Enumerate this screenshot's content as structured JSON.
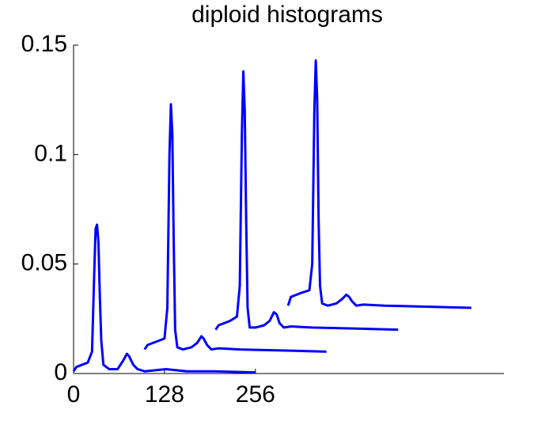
{
  "chart_data": {
    "type": "line",
    "title": "diploid histograms",
    "xlim": [
      0,
      606
    ],
    "ylim": [
      0,
      0.15
    ],
    "xticks": [
      0,
      128,
      256
    ],
    "yticks": [
      0,
      0.05,
      0.1,
      0.15
    ],
    "series": [
      {
        "color": "#0000ff",
        "x": [
          0,
          4,
          12,
          20,
          26,
          29,
          31,
          33,
          35,
          37,
          39,
          42,
          50,
          62,
          70,
          75,
          78,
          84,
          90,
          100,
          130,
          160,
          200,
          256
        ],
        "values": [
          0.001,
          0.003,
          0.004,
          0.005,
          0.01,
          0.045,
          0.066,
          0.068,
          0.06,
          0.035,
          0.015,
          0.004,
          0.002,
          0.002,
          0.006,
          0.009,
          0.008,
          0.004,
          0.002,
          0.001,
          0.002,
          0.001,
          0.001,
          0.0005
        ]
      },
      {
        "color": "#0000ff",
        "x": [
          100,
          104,
          112,
          120,
          128,
          132,
          135,
          137,
          139,
          141,
          143,
          146,
          154,
          166,
          174,
          180,
          183,
          188,
          194,
          204,
          234,
          300,
          356
        ],
        "values": [
          0.011,
          0.013,
          0.014,
          0.015,
          0.016,
          0.03,
          0.1,
          0.123,
          0.11,
          0.06,
          0.02,
          0.012,
          0.011,
          0.012,
          0.014,
          0.017,
          0.016,
          0.013,
          0.011,
          0.0115,
          0.011,
          0.0105,
          0.01
        ]
      },
      {
        "color": "#0000ff",
        "x": [
          200,
          204,
          212,
          220,
          230,
          234,
          237,
          239,
          241,
          243,
          245,
          248,
          256,
          268,
          276,
          282,
          286,
          290,
          296,
          306,
          336,
          400,
          457
        ],
        "values": [
          0.02,
          0.022,
          0.023,
          0.024,
          0.026,
          0.04,
          0.11,
          0.138,
          0.12,
          0.07,
          0.03,
          0.021,
          0.021,
          0.022,
          0.024,
          0.028,
          0.027,
          0.023,
          0.021,
          0.0215,
          0.021,
          0.0205,
          0.02
        ]
      },
      {
        "color": "#0000ff",
        "x": [
          302,
          306,
          314,
          322,
          332,
          336,
          339,
          341,
          343,
          345,
          347,
          350,
          358,
          370,
          378,
          384,
          388,
          392,
          398,
          408,
          438,
          500,
          560
        ],
        "values": [
          0.031,
          0.035,
          0.036,
          0.037,
          0.038,
          0.05,
          0.12,
          0.143,
          0.125,
          0.07,
          0.04,
          0.032,
          0.031,
          0.032,
          0.034,
          0.036,
          0.035,
          0.033,
          0.031,
          0.0315,
          0.031,
          0.0305,
          0.03
        ]
      }
    ]
  }
}
